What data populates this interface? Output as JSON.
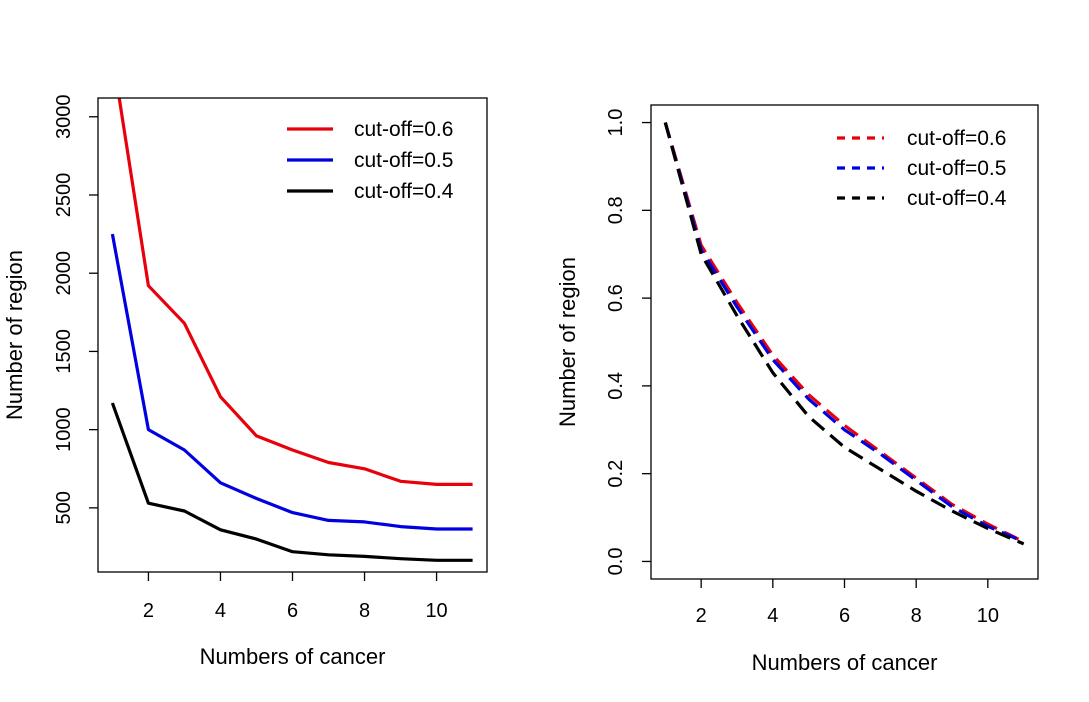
{
  "chart_data": [
    {
      "type": "line",
      "title": "",
      "xlabel": "Numbers of cancer",
      "ylabel": "Number of region",
      "xlim": [
        0.6,
        11.4
      ],
      "ylim": [
        90,
        3120
      ],
      "xticks": [
        2,
        4,
        6,
        8,
        10
      ],
      "xtick_labels": [
        "2",
        "4",
        "6",
        "8",
        "10"
      ],
      "yticks": [
        500,
        1000,
        1500,
        2000,
        2500,
        3000
      ],
      "ytick_labels": [
        "500",
        "1000",
        "1500",
        "2000",
        "2500",
        "3000"
      ],
      "x": [
        1,
        2,
        3,
        4,
        5,
        6,
        7,
        8,
        9,
        10,
        11
      ],
      "line_style": "solid",
      "grid": false,
      "legend_position": "top-right",
      "series": [
        {
          "name": "cut-off=0.6",
          "color": "#e8000b",
          "values": [
            3400,
            1920,
            1680,
            1210,
            960,
            870,
            790,
            750,
            670,
            650,
            650
          ]
        },
        {
          "name": "cut-off=0.5",
          "color": "#0000e0",
          "values": [
            2250,
            1000,
            870,
            660,
            560,
            470,
            420,
            410,
            380,
            365,
            365
          ]
        },
        {
          "name": "cut-off=0.4",
          "color": "#000000",
          "values": [
            1170,
            530,
            480,
            360,
            300,
            220,
            200,
            190,
            175,
            165,
            165
          ]
        }
      ]
    },
    {
      "type": "line",
      "title": "",
      "xlabel": "Numbers of cancer",
      "ylabel": "Number of region",
      "xlim": [
        0.6,
        11.4
      ],
      "ylim": [
        -0.04,
        1.04
      ],
      "xticks": [
        2,
        4,
        6,
        8,
        10
      ],
      "xtick_labels": [
        "2",
        "4",
        "6",
        "8",
        "10"
      ],
      "yticks": [
        0,
        0.2,
        0.4,
        0.6,
        0.8,
        1
      ],
      "ytick_labels": [
        "0.0",
        "0.2",
        "0.4",
        "0.6",
        "0.8",
        "1.0"
      ],
      "x": [
        1,
        2,
        3,
        4,
        5,
        6,
        7,
        8,
        9,
        10,
        11
      ],
      "line_style": "dashed",
      "grid": false,
      "legend_position": "top-right",
      "series": [
        {
          "name": "cut-off=0.6",
          "color": "#e8000b",
          "values": [
            1.0,
            0.72,
            0.59,
            0.47,
            0.38,
            0.31,
            0.25,
            0.19,
            0.13,
            0.085,
            0.045
          ]
        },
        {
          "name": "cut-off=0.5",
          "color": "#0000e0",
          "values": [
            1.0,
            0.71,
            0.58,
            0.46,
            0.37,
            0.3,
            0.245,
            0.185,
            0.125,
            0.08,
            0.045
          ]
        },
        {
          "name": "cut-off=0.4",
          "color": "#000000",
          "values": [
            1.0,
            0.7,
            0.56,
            0.43,
            0.33,
            0.26,
            0.21,
            0.16,
            0.115,
            0.075,
            0.04
          ]
        }
      ]
    }
  ]
}
